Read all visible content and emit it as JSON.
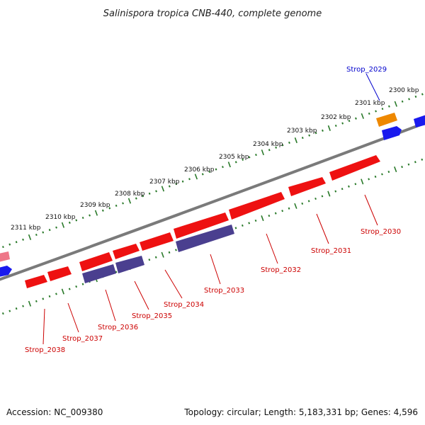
{
  "title": "Salinispora tropica CNB-440, complete genome",
  "footer": {
    "accession": "Accession: NC_009380",
    "summary": "Topology: circular; Length: 5,183,331 bp; Genes: 4,596"
  },
  "colors": {
    "forward_gene": "#ee1111",
    "reverse_gene": "#4a3f8f",
    "highlight_gene": "#ee8800",
    "blue_gene": "#1a1aee",
    "backbone": "#7a7a7a",
    "tick": "#2a7a2a",
    "label_red": "#cc0000",
    "label_blue": "#0000cc"
  },
  "scale_labels": [
    "2300 kbp",
    "2301 kbp",
    "2302 kbp",
    "2303 kbp",
    "2304 kbp",
    "2305 kbp",
    "2306 kbp",
    "2307 kbp",
    "2308 kbp",
    "2309 kbp",
    "2310 kbp",
    "2311 kbp"
  ],
  "gene_labels": [
    {
      "name": "Strop_2029",
      "color": "blue"
    },
    {
      "name": "Strop_2030",
      "color": "red"
    },
    {
      "name": "Strop_2031",
      "color": "red"
    },
    {
      "name": "Strop_2032",
      "color": "red"
    },
    {
      "name": "Strop_2033",
      "color": "red"
    },
    {
      "name": "Strop_2034",
      "color": "red"
    },
    {
      "name": "Strop_2035",
      "color": "red"
    },
    {
      "name": "Strop_2036",
      "color": "red"
    },
    {
      "name": "Strop_2037",
      "color": "red"
    },
    {
      "name": "Strop_2038",
      "color": "red"
    }
  ]
}
